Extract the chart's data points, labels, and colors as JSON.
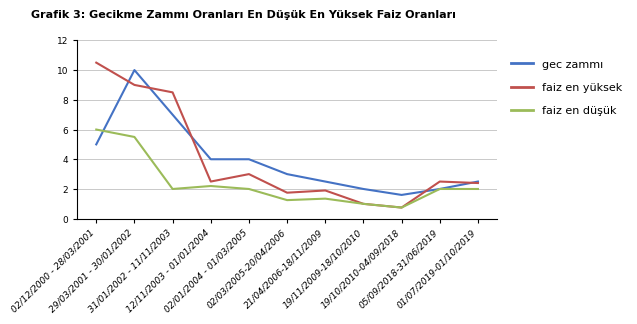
{
  "title": "Grafik 3: Gecikme Zammı Oranları En Düşük En Yüksek Faiz Oranları",
  "categories": [
    "02/12/2000 - 28/03/2001",
    "29/03/2001 - 30/01/2002",
    "31/01/2002 - 11/11/2003",
    "12/11/2003 - 01/01/2004",
    "02/01/2004 - 01/03/2005",
    "02/03/2005-20/04/2006",
    "21/04/2006-18/11/2009",
    "19/11/2009-18/10/2010",
    "19/10/2010-04/09/2018",
    "05/09/2018-31/06/2019",
    "01/07/2019-01/10/2019"
  ],
  "gec_zammi": [
    5,
    10,
    null,
    4,
    4,
    3,
    2.5,
    2,
    1.6,
    2,
    2.5
  ],
  "faiz_en_yuksek": [
    10.5,
    9,
    8.5,
    2.5,
    3,
    1.75,
    1.9,
    1,
    0.75,
    2.5,
    2.4
  ],
  "faiz_en_dusuk": [
    6,
    5.5,
    2,
    2.2,
    2,
    1.25,
    1.35,
    1,
    0.75,
    2,
    2
  ],
  "ylim": [
    0,
    12
  ],
  "yticks": [
    0,
    2,
    4,
    6,
    8,
    10,
    12
  ],
  "line_colors": {
    "gec_zammi": "#4472C4",
    "faiz_en_yuksek": "#C0504D",
    "faiz_en_dusuk": "#9BBB59"
  },
  "legend_labels": [
    "gec zammı",
    "faiz en yüksek",
    "faiz en düşük"
  ],
  "background_color": "#ffffff",
  "title_fontsize": 8,
  "tick_fontsize": 6.5,
  "legend_fontsize": 8
}
